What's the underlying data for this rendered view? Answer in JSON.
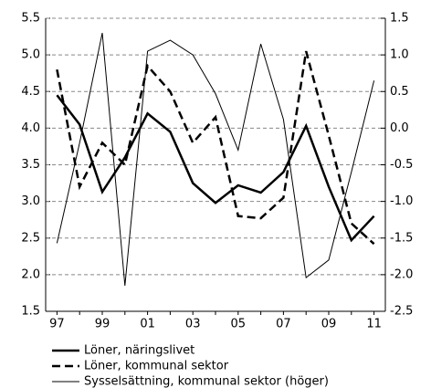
{
  "chart_data": {
    "type": "line",
    "categories": [
      "97",
      null,
      "99",
      null,
      "01",
      null,
      "03",
      null,
      "05",
      null,
      "07",
      null,
      "09",
      null,
      "11"
    ],
    "series": [
      {
        "name": "Löner, näringslivet",
        "color": "#000000",
        "style": "solid",
        "width": 2.5,
        "values": [
          4.45,
          4.05,
          3.13,
          3.6,
          4.2,
          3.95,
          3.25,
          2.98,
          3.22,
          3.12,
          3.4,
          4.03,
          3.2,
          2.47,
          2.8
        ]
      },
      {
        "name": "Löner, kommunal sektor",
        "color": "#000000",
        "style": "dashed",
        "width": 2.5,
        "values": [
          4.8,
          3.2,
          3.8,
          3.5,
          4.85,
          4.5,
          3.8,
          4.15,
          2.8,
          2.77,
          3.05,
          5.05,
          3.9,
          2.7,
          2.42
        ]
      },
      {
        "name": "Sysselsättning, kommunal sektor (höger)",
        "color": "#000000",
        "style": "solid",
        "width": 1,
        "axis": "y2",
        "values": [
          -1.57,
          -0.2,
          1.3,
          -2.15,
          1.05,
          1.2,
          1.0,
          0.47,
          -0.3,
          1.15,
          0.12,
          -2.04,
          -1.8,
          -0.6,
          0.65
        ]
      }
    ],
    "ylim": [
      1.5,
      5.5
    ],
    "yticks": [
      1.5,
      {
        "value": 2,
        "label": "2.0"
      },
      2.5,
      {
        "value": 3,
        "label": "3.0"
      },
      3.5,
      {
        "value": 4,
        "label": "4.0"
      },
      4.5,
      {
        "value": 5,
        "label": "5.0"
      },
      5.5
    ],
    "y2lim": [
      -2.5,
      1.5
    ],
    "y2ticks": [
      -2.5,
      {
        "value": -2,
        "label": "-2.0"
      },
      -1.5,
      {
        "value": -1,
        "label": "-1.0"
      },
      -0.5,
      {
        "value": 0,
        "label": "0.0"
      },
      0.5,
      {
        "value": 1,
        "label": "1.0"
      },
      1.5
    ],
    "grid": true
  }
}
